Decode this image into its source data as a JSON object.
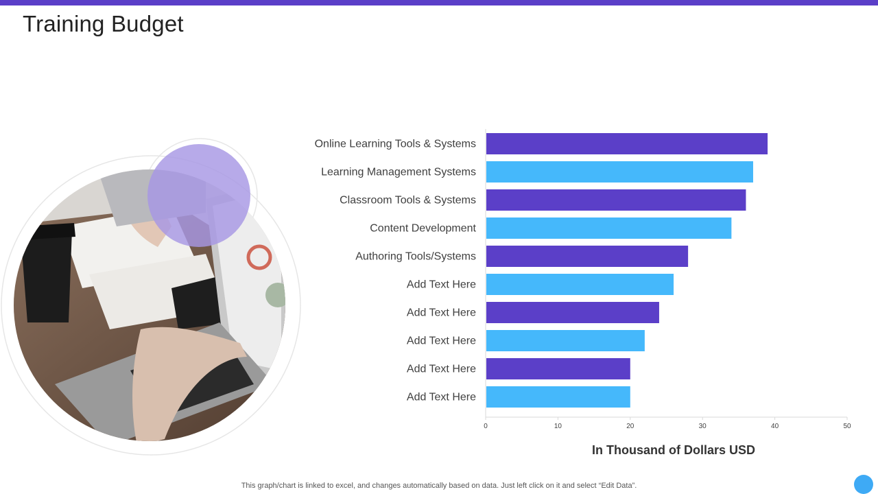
{
  "page": {
    "title": "Training Budget",
    "footnote": "This graph/chart is linked to excel,  and changes automatically based on data. Just left click on it and select “Edit Data”."
  },
  "colors": {
    "accent_purple": "#5b3fc8",
    "accent_blue": "#45b8fb",
    "lavender": "#a797e4",
    "dot_blue": "#3eaaf5"
  },
  "chart_data": {
    "type": "bar",
    "orientation": "horizontal",
    "title": "",
    "categories": [
      "Online Learning Tools & Systems",
      "Learning Management Systems",
      "Classroom Tools & Systems",
      "Content Development",
      "Authoring Tools/Systems",
      "Add Text Here",
      "Add Text Here",
      "Add Text Here",
      "Add Text Here",
      "Add Text Here"
    ],
    "values": [
      39,
      37,
      36,
      34,
      28,
      26,
      24,
      22,
      20,
      20
    ],
    "xlabel": "In Thousand of Dollars USD",
    "ylabel": "",
    "xlim": [
      0,
      50
    ],
    "xticks": [
      0,
      10,
      20,
      30,
      40,
      50
    ],
    "bar_colors": [
      "#5b3fc8",
      "#45b8fb"
    ],
    "grid": false,
    "legend": "none"
  }
}
